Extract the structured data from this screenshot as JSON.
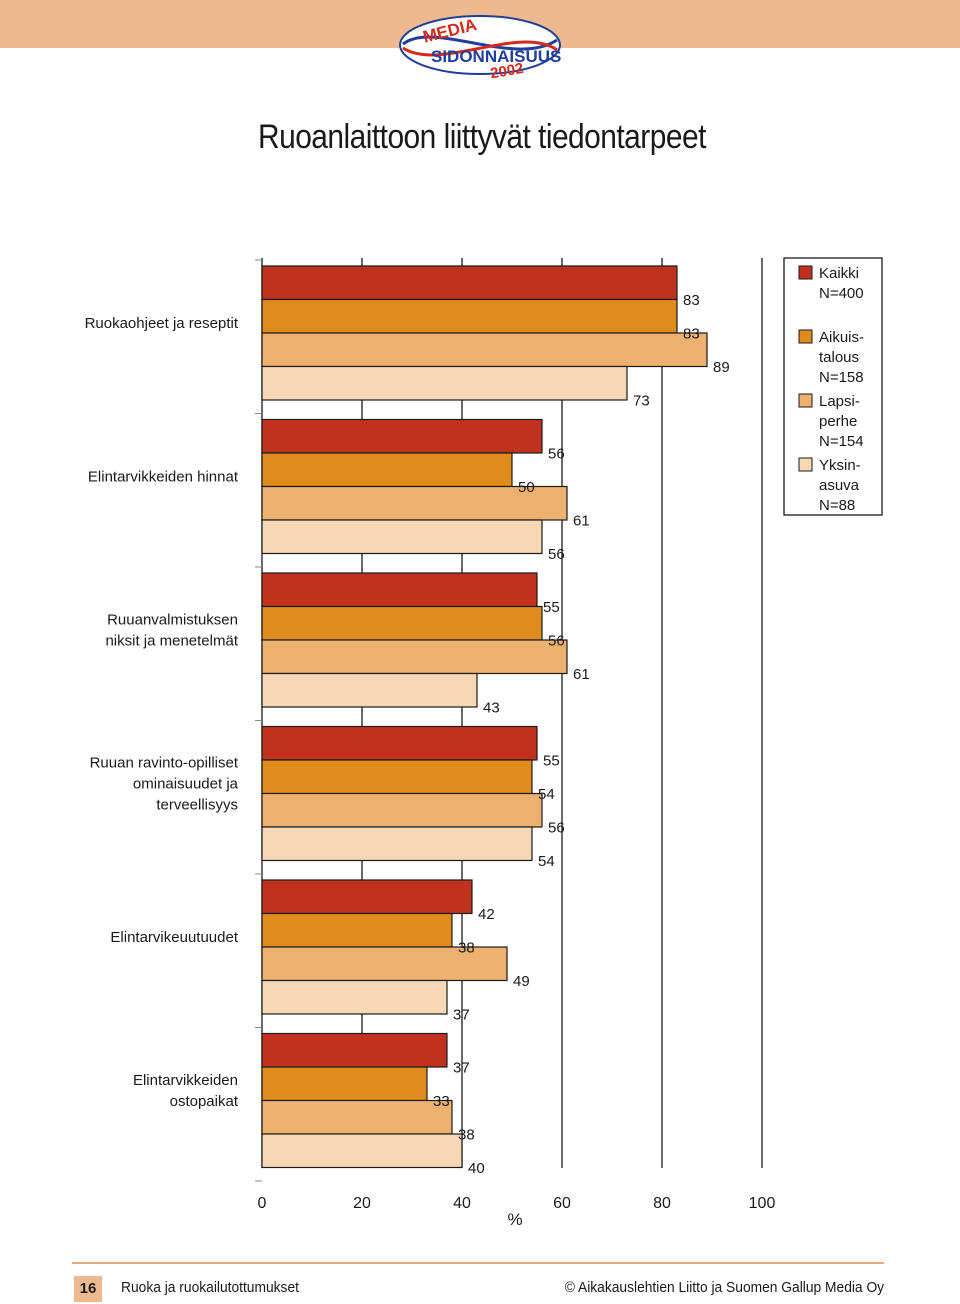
{
  "header": {
    "logo_line1": "MEDIA",
    "logo_line2": "SIDONNAISUUS",
    "logo_year": "2002"
  },
  "title": "Ruoanlaittoon liittyvät tiedontarpeet",
  "chart_data": {
    "type": "bar",
    "orientation": "horizontal",
    "title": "Ruoanlaittoon liittyvät tiedontarpeet",
    "xlabel": "%",
    "xlim": [
      0,
      100
    ],
    "xticks": [
      "0",
      "20",
      "40",
      "60",
      "80",
      "100"
    ],
    "grid": true,
    "legend_position": "top-right",
    "categories": [
      [
        "Ruokaohjeet ja reseptit"
      ],
      [
        "Elintarvikkeiden hinnat"
      ],
      [
        "Ruuanvalmistuksen",
        "niksit ja menetelmät"
      ],
      [
        "Ruuan ravinto-opilliset",
        "ominaisuudet ja",
        "terveellisyys"
      ],
      [
        "Elintarvikeuutuudet"
      ],
      [
        "Elintarvikkeiden",
        "ostopaikat"
      ]
    ],
    "series": [
      {
        "name": [
          "Kaikki",
          "N=400"
        ],
        "color": "#c0321e",
        "values": [
          83,
          56,
          55,
          55,
          42,
          37
        ]
      },
      {
        "name": [
          "Aikuis-",
          "talous",
          "N=158"
        ],
        "color": "#e08c1c",
        "values": [
          83,
          50,
          56,
          54,
          38,
          33
        ]
      },
      {
        "name": [
          "Lapsi-",
          "perhe",
          "N=154"
        ],
        "color": "#ecb06f",
        "values": [
          89,
          61,
          61,
          56,
          49,
          38
        ]
      },
      {
        "name": [
          "Yksin-",
          "asuva",
          "N=88"
        ],
        "color": "#f6d8b4",
        "values": [
          73,
          56,
          43,
          54,
          37,
          40
        ]
      }
    ]
  },
  "footer": {
    "page_number": "16",
    "left": "Ruoka ja ruokailutottumukset",
    "right": "© Aikakauslehtien Liitto ja Suomen Gallup Media Oy"
  }
}
